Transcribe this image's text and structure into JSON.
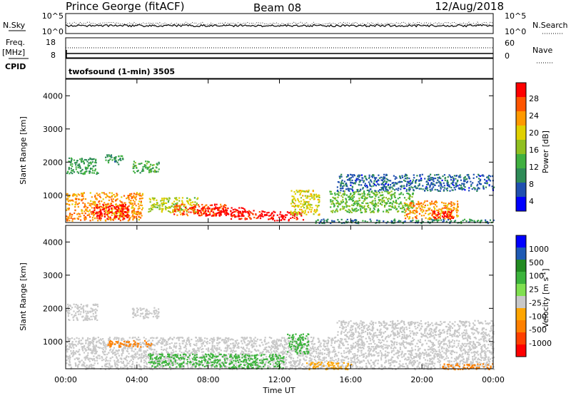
{
  "header": {
    "station": "Prince George (fitACF)",
    "beam": "Beam 08",
    "date": "12/Aug/2018"
  },
  "strip_sky": {
    "left_label": "N.Sky",
    "left_ticks": [
      "10^5",
      "10^0"
    ],
    "right_ticks": [
      "10^5",
      "10^0"
    ],
    "right_label": "N.Search"
  },
  "strip_freq": {
    "left_label_1": "Freq.",
    "left_label_2": "[MHz]",
    "left_ticks": [
      "18",
      "8"
    ],
    "right_ticks": [
      "60",
      "0"
    ],
    "right_label": "Nave"
  },
  "strip_cpid": {
    "left_label": "CPID",
    "program": "twofsound (1-min) 3505"
  },
  "colors": {
    "power_scale": [
      "#0000ff",
      "#2050b0",
      "#2e8b57",
      "#40b040",
      "#90c020",
      "#e0d000",
      "#ff9900",
      "#ff5500",
      "#ff0000"
    ],
    "velocity_scale": [
      "#0000ff",
      "#1e5ab4",
      "#228b22",
      "#3cb43c",
      "#80e050",
      "#c8c8c8",
      "#ffa500",
      "#ff8000",
      "#ff4000",
      "#ff0000"
    ],
    "ground_scatter": "#c8c8c8"
  },
  "chart_data": [
    {
      "type": "heatmap",
      "title": "Power",
      "xlabel": "Time UT",
      "ylabel": "Slant Range [km]",
      "xlim_hours": [
        0,
        24
      ],
      "ylim": [
        180,
        4500
      ],
      "x_ticks": [
        "00:00",
        "04:00",
        "08:00",
        "12:00",
        "16:00",
        "20:00",
        "00:00"
      ],
      "y_ticks": [
        1000,
        2000,
        3000,
        4000
      ],
      "colorbar": {
        "label": "Power [dB]",
        "ticks": [
          "28",
          "24",
          "20",
          "16",
          "12",
          "8",
          "4"
        ],
        "range": [
          0,
          30
        ]
      },
      "regions": [
        {
          "t0": 0.0,
          "t1": 4.3,
          "r0": 250,
          "r1": 1100,
          "value": 22
        },
        {
          "t0": 1.5,
          "t1": 3.5,
          "r0": 300,
          "r1": 750,
          "value": 29
        },
        {
          "t0": 0.0,
          "t1": 1.8,
          "r0": 1650,
          "r1": 2150,
          "value": 10
        },
        {
          "t0": 2.2,
          "t1": 3.2,
          "r0": 1950,
          "r1": 2250,
          "value": 9
        },
        {
          "t0": 3.7,
          "t1": 5.2,
          "r0": 1700,
          "r1": 2050,
          "value": 11
        },
        {
          "t0": 4.6,
          "t1": 7.4,
          "r0": 500,
          "r1": 950,
          "value": 16
        },
        {
          "t0": 6.0,
          "t1": 9.0,
          "r0": 400,
          "r1": 750,
          "value": 25
        },
        {
          "t0": 7.3,
          "t1": 10.2,
          "r0": 400,
          "r1": 650,
          "value": 30
        },
        {
          "t0": 9.2,
          "t1": 11.8,
          "r0": 300,
          "r1": 560,
          "value": 28
        },
        {
          "t0": 11.5,
          "t1": 13.3,
          "r0": 260,
          "r1": 520,
          "value": 29
        },
        {
          "t0": 12.6,
          "t1": 14.2,
          "r0": 420,
          "r1": 1180,
          "value": 18
        },
        {
          "t0": 14.8,
          "t1": 19.5,
          "r0": 500,
          "r1": 1150,
          "value": 13
        },
        {
          "t0": 15.2,
          "t1": 24.0,
          "r0": 1150,
          "r1": 1650,
          "value": 6
        },
        {
          "t0": 19.0,
          "t1": 22.0,
          "r0": 300,
          "r1": 850,
          "value": 22
        },
        {
          "t0": 20.6,
          "t1": 21.8,
          "r0": 300,
          "r1": 560,
          "value": 29
        },
        {
          "t0": 14.0,
          "t1": 24.0,
          "r0": 180,
          "r1": 300,
          "value": 8
        }
      ]
    },
    {
      "type": "heatmap",
      "title": "Velocity",
      "xlabel": "Time UT",
      "ylabel": "Slant Range [km]",
      "xlim_hours": [
        0,
        24
      ],
      "ylim": [
        180,
        4500
      ],
      "x_ticks": [
        "00:00",
        "04:00",
        "08:00",
        "12:00",
        "16:00",
        "20:00",
        "00:00"
      ],
      "y_ticks": [
        1000,
        2000,
        3000,
        4000
      ],
      "colorbar": {
        "label": "Velocity [m s",
        "label_sup": "-1",
        "label_close": "]",
        "ticks": [
          "1000",
          "500",
          "100",
          "25",
          "-25",
          "-100",
          "-500",
          "-1000"
        ]
      },
      "regions": [
        {
          "t0": 0.0,
          "t1": 24.0,
          "r0": 180,
          "r1": 1150,
          "value": 0
        },
        {
          "t0": 0.0,
          "t1": 1.8,
          "r0": 1650,
          "r1": 2150,
          "value": 0
        },
        {
          "t0": 3.7,
          "t1": 5.2,
          "r0": 1700,
          "r1": 2050,
          "value": 0
        },
        {
          "t0": 15.2,
          "t1": 24.0,
          "r0": 1150,
          "r1": 1650,
          "value": 0
        },
        {
          "t0": 4.6,
          "t1": 9.0,
          "r0": 250,
          "r1": 650,
          "value": 150
        },
        {
          "t0": 9.0,
          "t1": 12.2,
          "r0": 200,
          "r1": 650,
          "value": 150
        },
        {
          "t0": 12.4,
          "t1": 13.6,
          "r0": 650,
          "r1": 1250,
          "value": 300
        },
        {
          "t0": 13.5,
          "t1": 16.0,
          "r0": 180,
          "r1": 400,
          "value": -80
        },
        {
          "t0": 2.3,
          "t1": 4.8,
          "r0": 850,
          "r1": 1050,
          "value": -150
        },
        {
          "t0": 21.0,
          "t1": 24.0,
          "r0": 180,
          "r1": 350,
          "value": -200
        }
      ]
    }
  ]
}
